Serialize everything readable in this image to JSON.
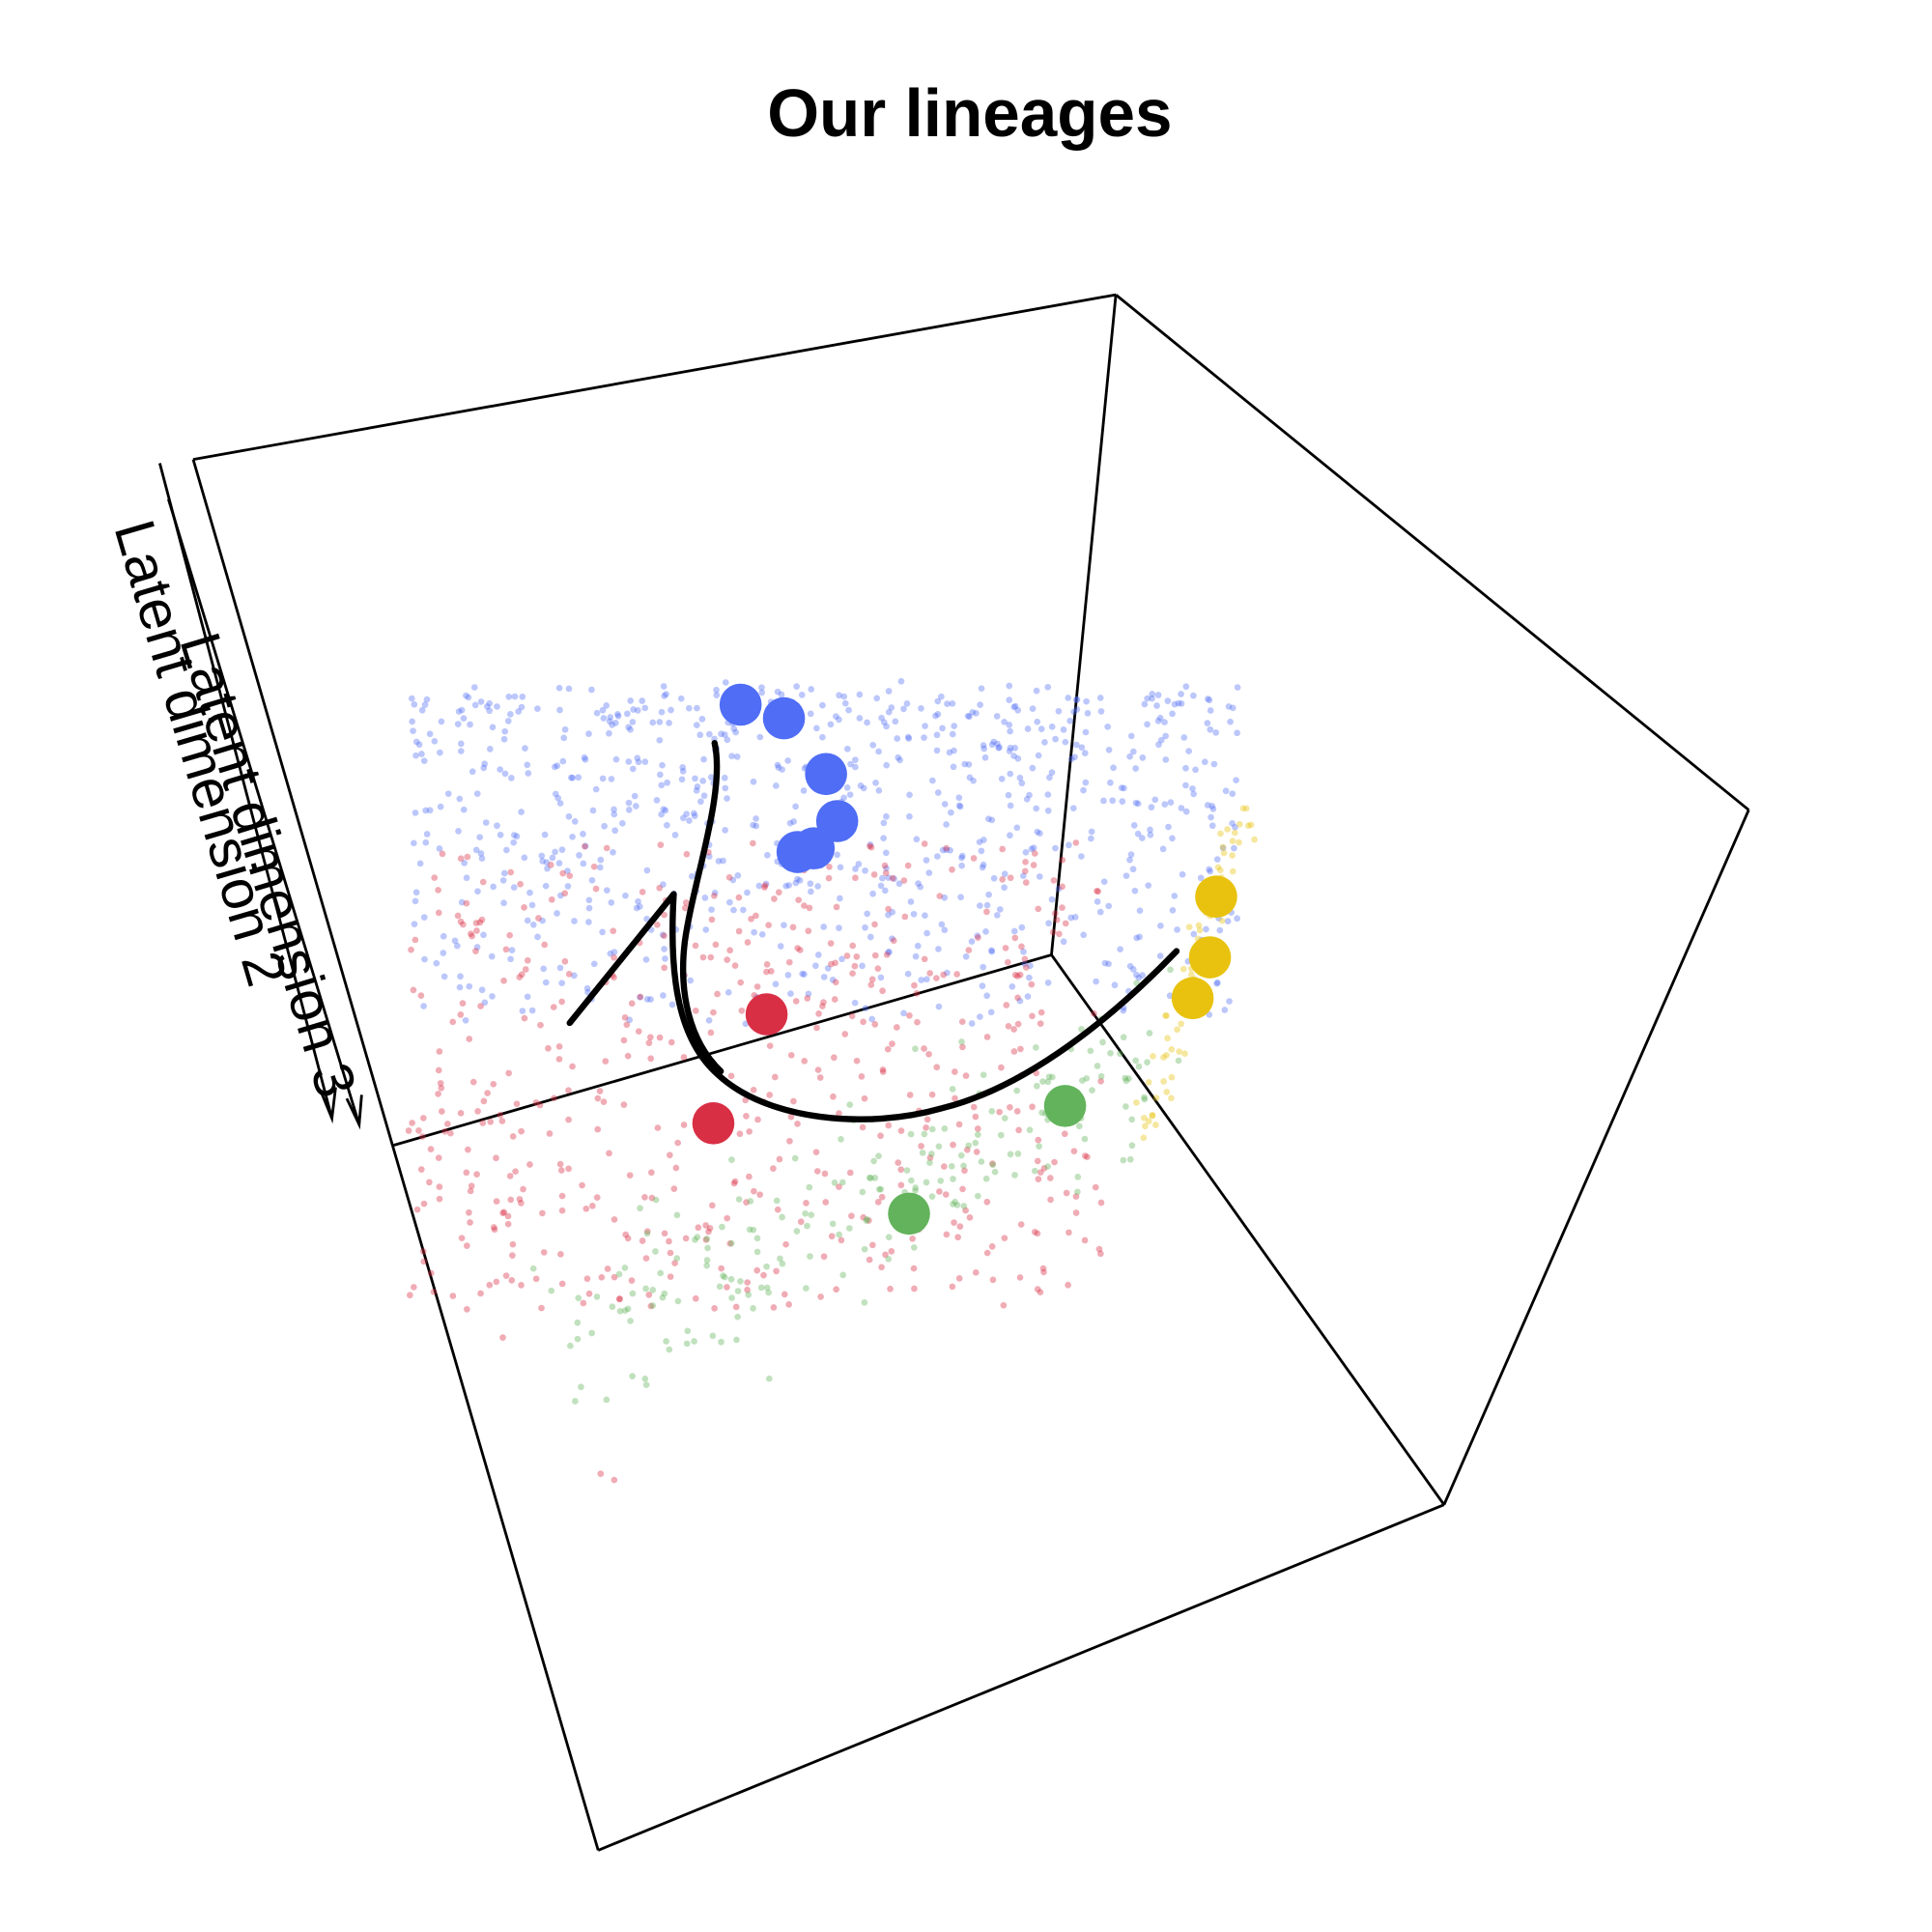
{
  "chart_data": {
    "type": "scatter",
    "title": "Our lineages",
    "axes": {
      "dim2_label": "Latent dimension 2",
      "dim3_label": "Latent dimension 3"
    },
    "grid": false,
    "legend": "none",
    "series": [
      {
        "color": "#4f6df5",
        "centroids": [
          [
            598,
            569
          ],
          [
            633,
            580
          ],
          [
            667,
            625
          ],
          [
            676,
            663
          ],
          [
            657,
            685
          ],
          [
            644,
            688
          ]
        ]
      },
      {
        "color": "#d92f45",
        "centroids": [
          [
            619,
            819
          ],
          [
            576,
            907
          ]
        ]
      },
      {
        "color": "#63b35c",
        "centroids": [
          [
            860,
            893
          ],
          [
            734,
            980
          ]
        ]
      },
      {
        "color": "#e8c20e",
        "centroids": [
          [
            982,
            724
          ],
          [
            977,
            773
          ],
          [
            963,
            806
          ]
        ]
      }
    ],
    "background_cells": {
      "blue": {
        "color": "#4f6df5",
        "count": 820
      },
      "red": {
        "color": "#d92f45",
        "count": 560
      },
      "green": {
        "color": "#63b35c",
        "count": 210
      },
      "yellow": {
        "color": "#e8c20e",
        "count": 70
      }
    }
  }
}
